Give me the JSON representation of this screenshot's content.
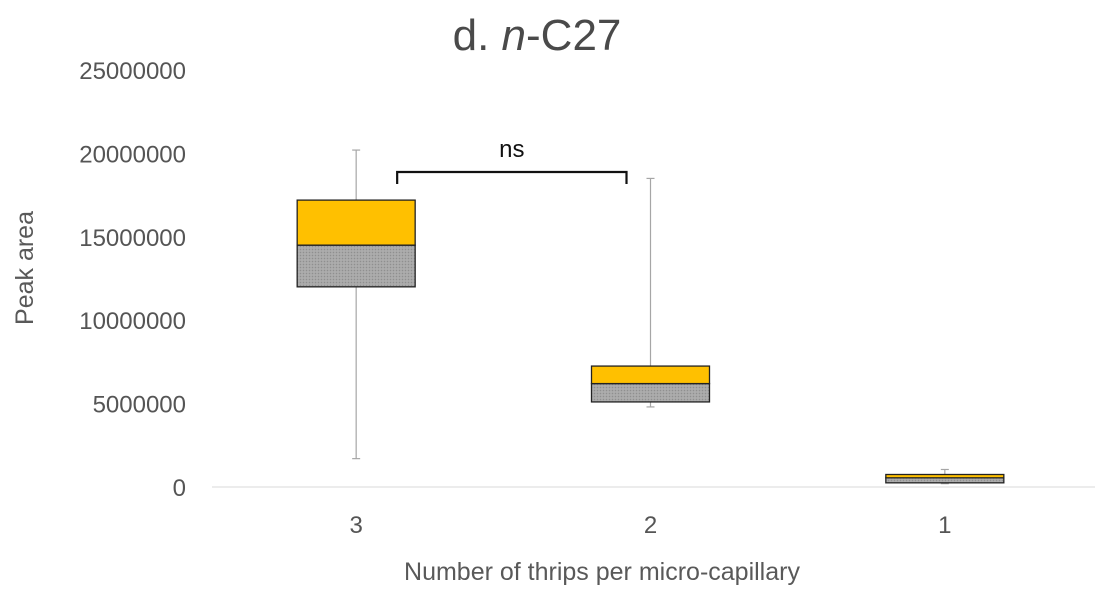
{
  "chart_data": {
    "type": "box",
    "title_prefix": "d. ",
    "title_italic": "n",
    "title_suffix": "-C27",
    "xlabel": "Number of thrips per micro-capillary",
    "ylabel": "Peak area",
    "ylim": [
      0,
      25000000
    ],
    "yticks": [
      "0",
      "5000000",
      "10000000",
      "15000000",
      "20000000",
      "25000000"
    ],
    "ytick_values": [
      0,
      5000000,
      10000000,
      15000000,
      20000000,
      25000000
    ],
    "categories": [
      "3",
      "2",
      "1"
    ],
    "boxes": [
      {
        "category": "3",
        "min": 1700000,
        "q1": 12000000,
        "median": 14500000,
        "q3": 17200000,
        "max": 20200000
      },
      {
        "category": "2",
        "min": 4800000,
        "q1": 5100000,
        "median": 6200000,
        "q3": 7250000,
        "max": 18500000
      },
      {
        "category": "1",
        "min": 200000,
        "q1": 250000,
        "median": 550000,
        "q3": 750000,
        "max": 1050000
      }
    ],
    "annotations": [
      {
        "text": "ns",
        "from": "3",
        "to": "2"
      }
    ],
    "colors": {
      "upper_box": "#FFC000",
      "lower_box": "#A6A6A6",
      "whisker": "#A6A6A6",
      "bracket": "#111111"
    }
  }
}
